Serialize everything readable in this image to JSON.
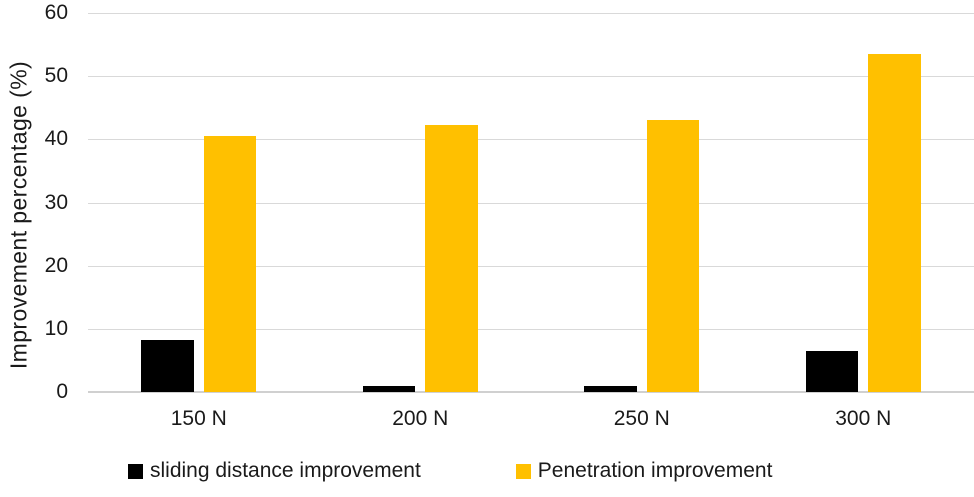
{
  "chart_data": {
    "type": "bar",
    "title": "",
    "categories": [
      "150 N",
      "200 N",
      "250 N",
      "300 N"
    ],
    "series": [
      {
        "name": "sliding distance improvement",
        "color": "#000000",
        "values": [
          8.3,
          0.9,
          0.9,
          6.5
        ]
      },
      {
        "name": "Penetration improvement",
        "color": "#FFC000",
        "values": [
          40.5,
          42.3,
          43.0,
          53.5
        ]
      }
    ],
    "xlabel": "",
    "ylabel": "Improvement percentage (%)",
    "ylim": [
      0,
      60
    ],
    "yticks": [
      0,
      10,
      20,
      30,
      40,
      50,
      60
    ],
    "grid": true,
    "legend_position": "bottom",
    "colors": {
      "background": "#FFFFFF",
      "text": "#1A1A1A",
      "gridline": "#D9D9D9",
      "axis_line": "#D0D0D0"
    }
  }
}
